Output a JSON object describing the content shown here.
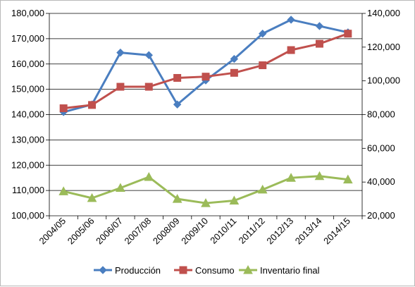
{
  "chart_data": {
    "type": "line",
    "title": "",
    "xlabel": "",
    "ylabel": "",
    "categories": [
      "2004/05",
      "2005/06",
      "2006/07",
      "2007/08",
      "2008/09",
      "2009/10",
      "2010/11",
      "2011/12",
      "2012/13",
      "2013/14",
      "2014/15"
    ],
    "y_left": {
      "min": 100000,
      "max": 180000,
      "step": 10000,
      "tick_labels": [
        "100,000",
        "110,000",
        "120,000",
        "130,000",
        "140,000",
        "150,000",
        "160,000",
        "170,000",
        "180,000"
      ]
    },
    "y_right": {
      "min": 20000,
      "max": 140000,
      "step": 20000,
      "tick_labels": [
        "20,000",
        "40,000",
        "60,000",
        "80,000",
        "100,000",
        "120,000",
        "140,000"
      ]
    },
    "grid": true,
    "legend_position": "bottom",
    "series": [
      {
        "name": "Producción",
        "axis": "left",
        "color": "#4a7ec0",
        "marker": "diamond",
        "values": [
          141000,
          144000,
          164500,
          163500,
          144000,
          153500,
          162000,
          172000,
          177500,
          175000,
          172500
        ]
      },
      {
        "name": "Consumo",
        "axis": "left",
        "color": "#c0504d",
        "marker": "square",
        "values": [
          142500,
          143800,
          151000,
          151000,
          154500,
          155000,
          156500,
          159500,
          165500,
          168000,
          172000
        ]
      },
      {
        "name": "Inventario final",
        "axis": "right",
        "color": "#9bbb59",
        "marker": "triangle",
        "values": [
          34500,
          30500,
          36500,
          43000,
          30000,
          27500,
          29000,
          35500,
          42500,
          43500,
          41500
        ]
      }
    ]
  }
}
